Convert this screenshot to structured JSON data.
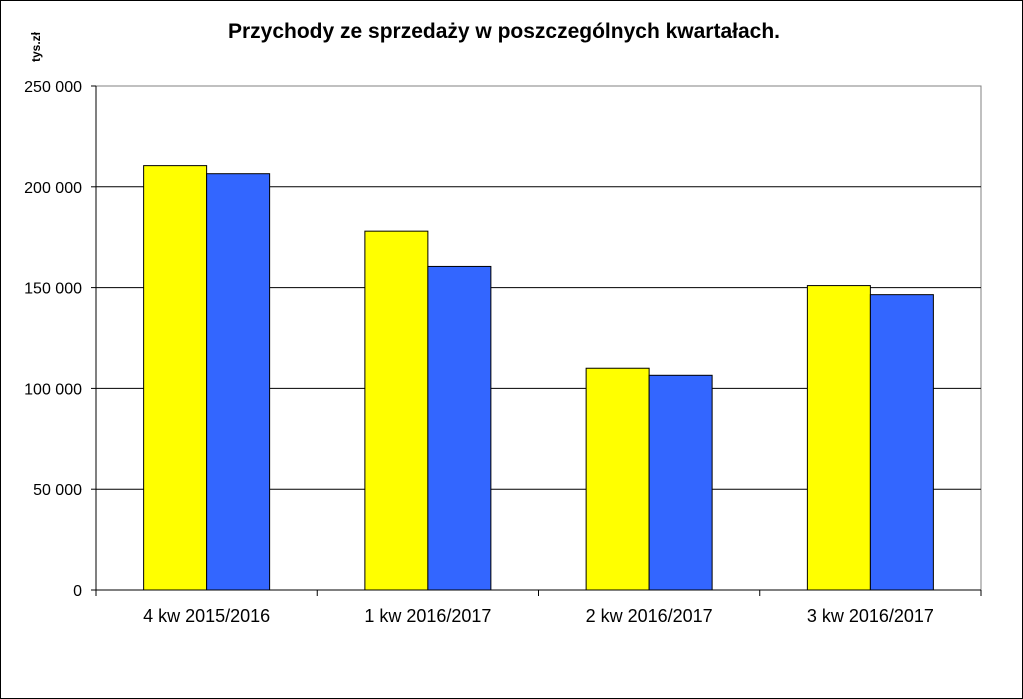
{
  "chart_data": {
    "type": "bar",
    "title": "Przychody ze sprzedaży w poszczególnych kwartałach.",
    "ylabel": "tys.zł",
    "xlabel": "",
    "categories": [
      "4 kw 2015/2016",
      "1 kw 2016/2017",
      "2 kw 2016/2017",
      "3 kw 2016/2017"
    ],
    "series": [
      {
        "color": "#FFFF00",
        "values": [
          210500,
          178000,
          110000,
          151000
        ]
      },
      {
        "color": "#3366FF",
        "values": [
          206500,
          160500,
          106500,
          146500
        ]
      }
    ],
    "ylim": [
      0,
      250000
    ],
    "yticks": [
      0,
      50000,
      100000,
      150000,
      200000,
      250000
    ],
    "ytick_labels": [
      "0",
      "50 000",
      "100 000",
      "150 000",
      "200 000",
      "250 000"
    ],
    "grid": true,
    "legend": "none"
  }
}
